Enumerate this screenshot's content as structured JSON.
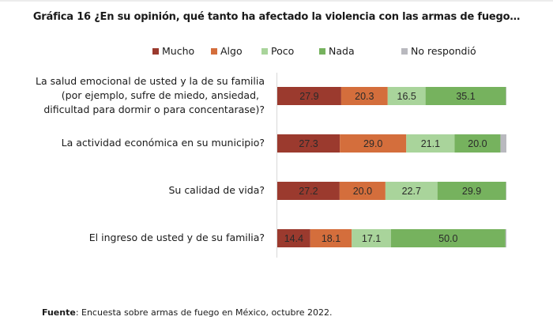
{
  "chart_data": {
    "type": "bar",
    "orientation": "horizontal",
    "stacked": true,
    "title": "Gráfica 16 ¿En su opinión, qué tanto ha afectado la violencia con las armas de fuego…",
    "xlabel": "",
    "ylabel": "",
    "xlim": [
      0,
      100
    ],
    "grid": false,
    "legend_position": "top",
    "categories": [
      [
        "La salud emocional de usted y la de su familia",
        "(por ejemplo, sufre de miedo, ansiedad,",
        "dificultad para dormir o para concentarase)?"
      ],
      [
        "La actividad económica en su municipio?"
      ],
      [
        "Su calidad de vida?"
      ],
      [
        "El ingreso de usted y de su familia?"
      ]
    ],
    "series": [
      {
        "name": "Mucho",
        "color": "#9B3A2E",
        "values": [
          27.9,
          27.3,
          27.2,
          14.4
        ]
      },
      {
        "name": "Algo",
        "color": "#D46E3C",
        "values": [
          20.3,
          29.0,
          20.0,
          18.1
        ]
      },
      {
        "name": "Poco",
        "color": "#A9D49B",
        "values": [
          16.5,
          21.1,
          22.7,
          17.1
        ]
      },
      {
        "name": "Nada",
        "color": "#76B25E",
        "values": [
          35.1,
          20.0,
          29.9,
          50.0
        ]
      },
      {
        "name": "No respondió",
        "color": "#B9B9BF",
        "values": [
          0.2,
          2.6,
          0.2,
          0.4
        ]
      }
    ],
    "data_labels_shown_for": [
      "Mucho",
      "Algo",
      "Poco",
      "Nada"
    ],
    "source_label": "Fuente",
    "source_text": ": Encuesta sobre armas de fuego en México, octubre 2022."
  }
}
